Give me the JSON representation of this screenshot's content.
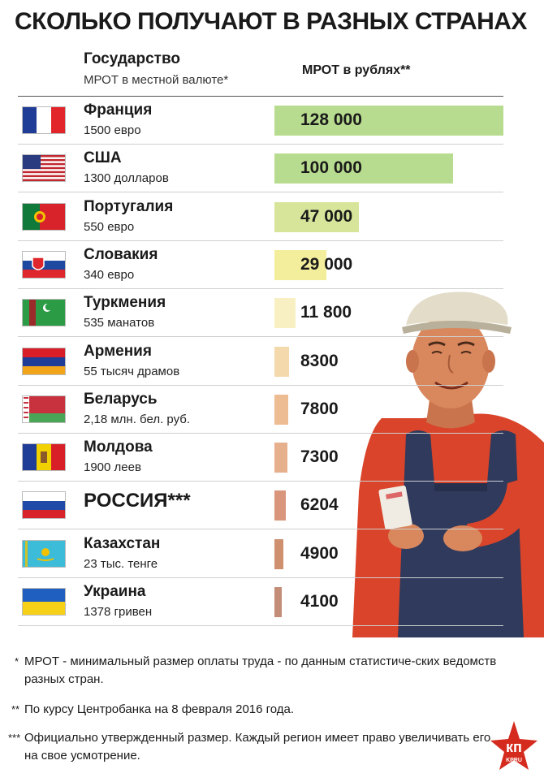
{
  "title": "СКОЛЬКО ПОЛУЧАЮТ В РАЗНЫХ СТРАНАХ",
  "header": {
    "col1": "Государство",
    "col1_sub": "МРОТ в местной валюте*",
    "col2": "МРОТ в рублях**"
  },
  "chart_data": {
    "type": "bar",
    "categories": [
      "Франция",
      "США",
      "Португалия",
      "Словакия",
      "Туркмения",
      "Армения",
      "Беларусь",
      "Молдова",
      "РОССИЯ***",
      "Казахстан",
      "Украина"
    ],
    "local_values": [
      "1500 евро",
      "1300 долларов",
      "550 евро",
      "340 евро",
      "535 манатов",
      "55 тысяч драмов",
      "2,18 млн. бел. руб.",
      "1900 леев",
      "",
      "23 тыс. тенге",
      "1378 гривен"
    ],
    "value_labels": [
      "128 000",
      "100 000",
      "47 000",
      "29 000",
      "11 800",
      "8300",
      "7800",
      "7300",
      "6204",
      "4900",
      "4100"
    ],
    "values": [
      128000,
      100000,
      47000,
      29000,
      11800,
      8300,
      7800,
      7300,
      6204,
      4900,
      4100
    ],
    "bar_colors": [
      "#b8dc8f",
      "#b8dc8f",
      "#d6e59a",
      "#f3ee9c",
      "#f8f0c2",
      "#f3d9ac",
      "#eebc93",
      "#e7b08c",
      "#d9967c",
      "#cf9070",
      "#c48d77"
    ],
    "xlim": [
      0,
      128000
    ]
  },
  "footnotes": [
    {
      "mark": "*",
      "text": "МРОТ - минимальный размер оплаты труда - по данным статистиче-ских ведомств разных стран."
    },
    {
      "mark": "**",
      "text": "По курсу Центробанка на 8 февраля 2016 года."
    },
    {
      "mark": "***",
      "text": "Официально утвержденный размер. Каждый регион имеет право увеличивать его на свое усмотрение."
    }
  ],
  "logo": {
    "text": "кп",
    "subtext": "KPRU"
  },
  "flags": [
    "france-flag-icon",
    "usa-flag-icon",
    "portugal-flag-icon",
    "slovakia-flag-icon",
    "turkmenistan-flag-icon",
    "armenia-flag-icon",
    "belarus-flag-icon",
    "moldova-flag-icon",
    "russia-flag-icon",
    "kazakhstan-flag-icon",
    "ukraine-flag-icon"
  ]
}
